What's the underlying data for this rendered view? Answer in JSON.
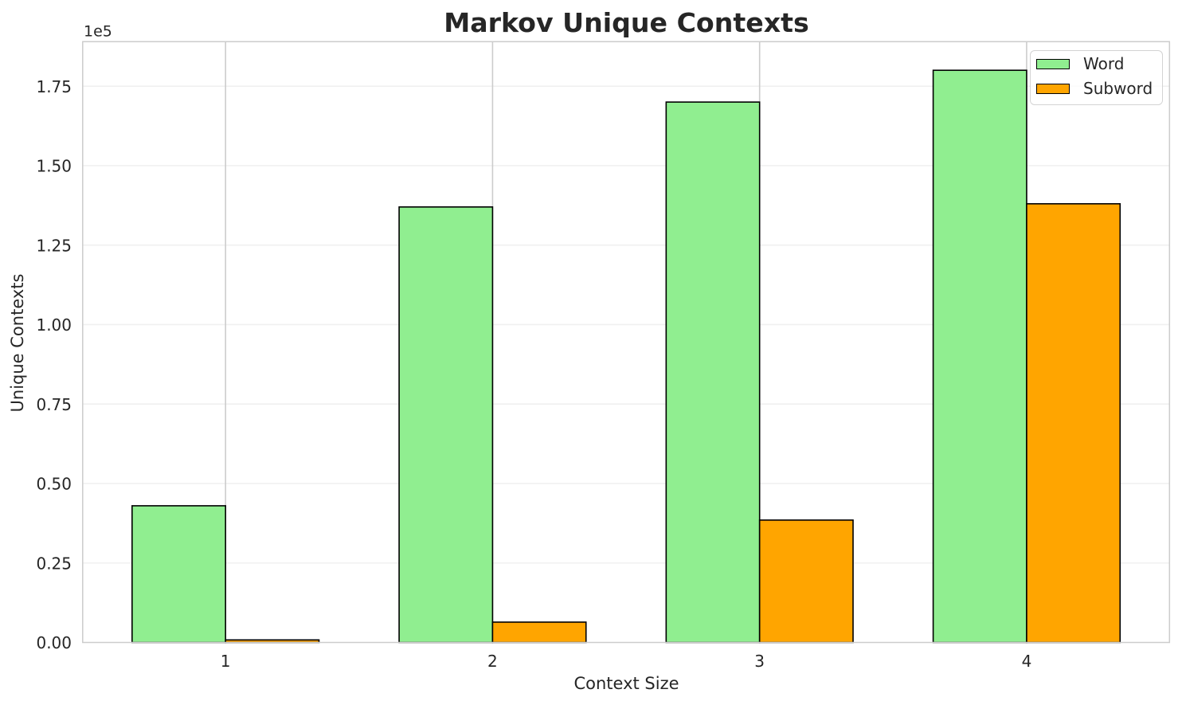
{
  "chart_data": {
    "type": "bar",
    "title": "Markov Unique Contexts",
    "xlabel": "Context Size",
    "ylabel": "Unique Contexts",
    "y_offset_label": "1e5",
    "categories": [
      "1",
      "2",
      "3",
      "4"
    ],
    "series": [
      {
        "name": "Word",
        "color": "#90EE90",
        "values": [
          43000,
          137000,
          170000,
          180000
        ]
      },
      {
        "name": "Subword",
        "color": "#FFA500",
        "values": [
          800,
          6400,
          38500,
          138000
        ]
      }
    ],
    "bar_width": 0.35,
    "bar_edge_color": "#000000",
    "xlim": [
      0.465,
      4.535
    ],
    "ylim": [
      0,
      189000
    ],
    "yticks": [
      0,
      25000,
      50000,
      75000,
      100000,
      125000,
      150000,
      175000
    ],
    "ytick_labels": [
      "0.00",
      "0.25",
      "0.50",
      "0.75",
      "1.00",
      "1.25",
      "1.50",
      "1.75"
    ],
    "grid": "both",
    "legend_position": "upper right",
    "colors": {
      "text": "#262626",
      "spine": "#cccccc",
      "vgrid": "#cccccc",
      "hgrid": "#f0f0f0",
      "background": "#ffffff"
    }
  }
}
